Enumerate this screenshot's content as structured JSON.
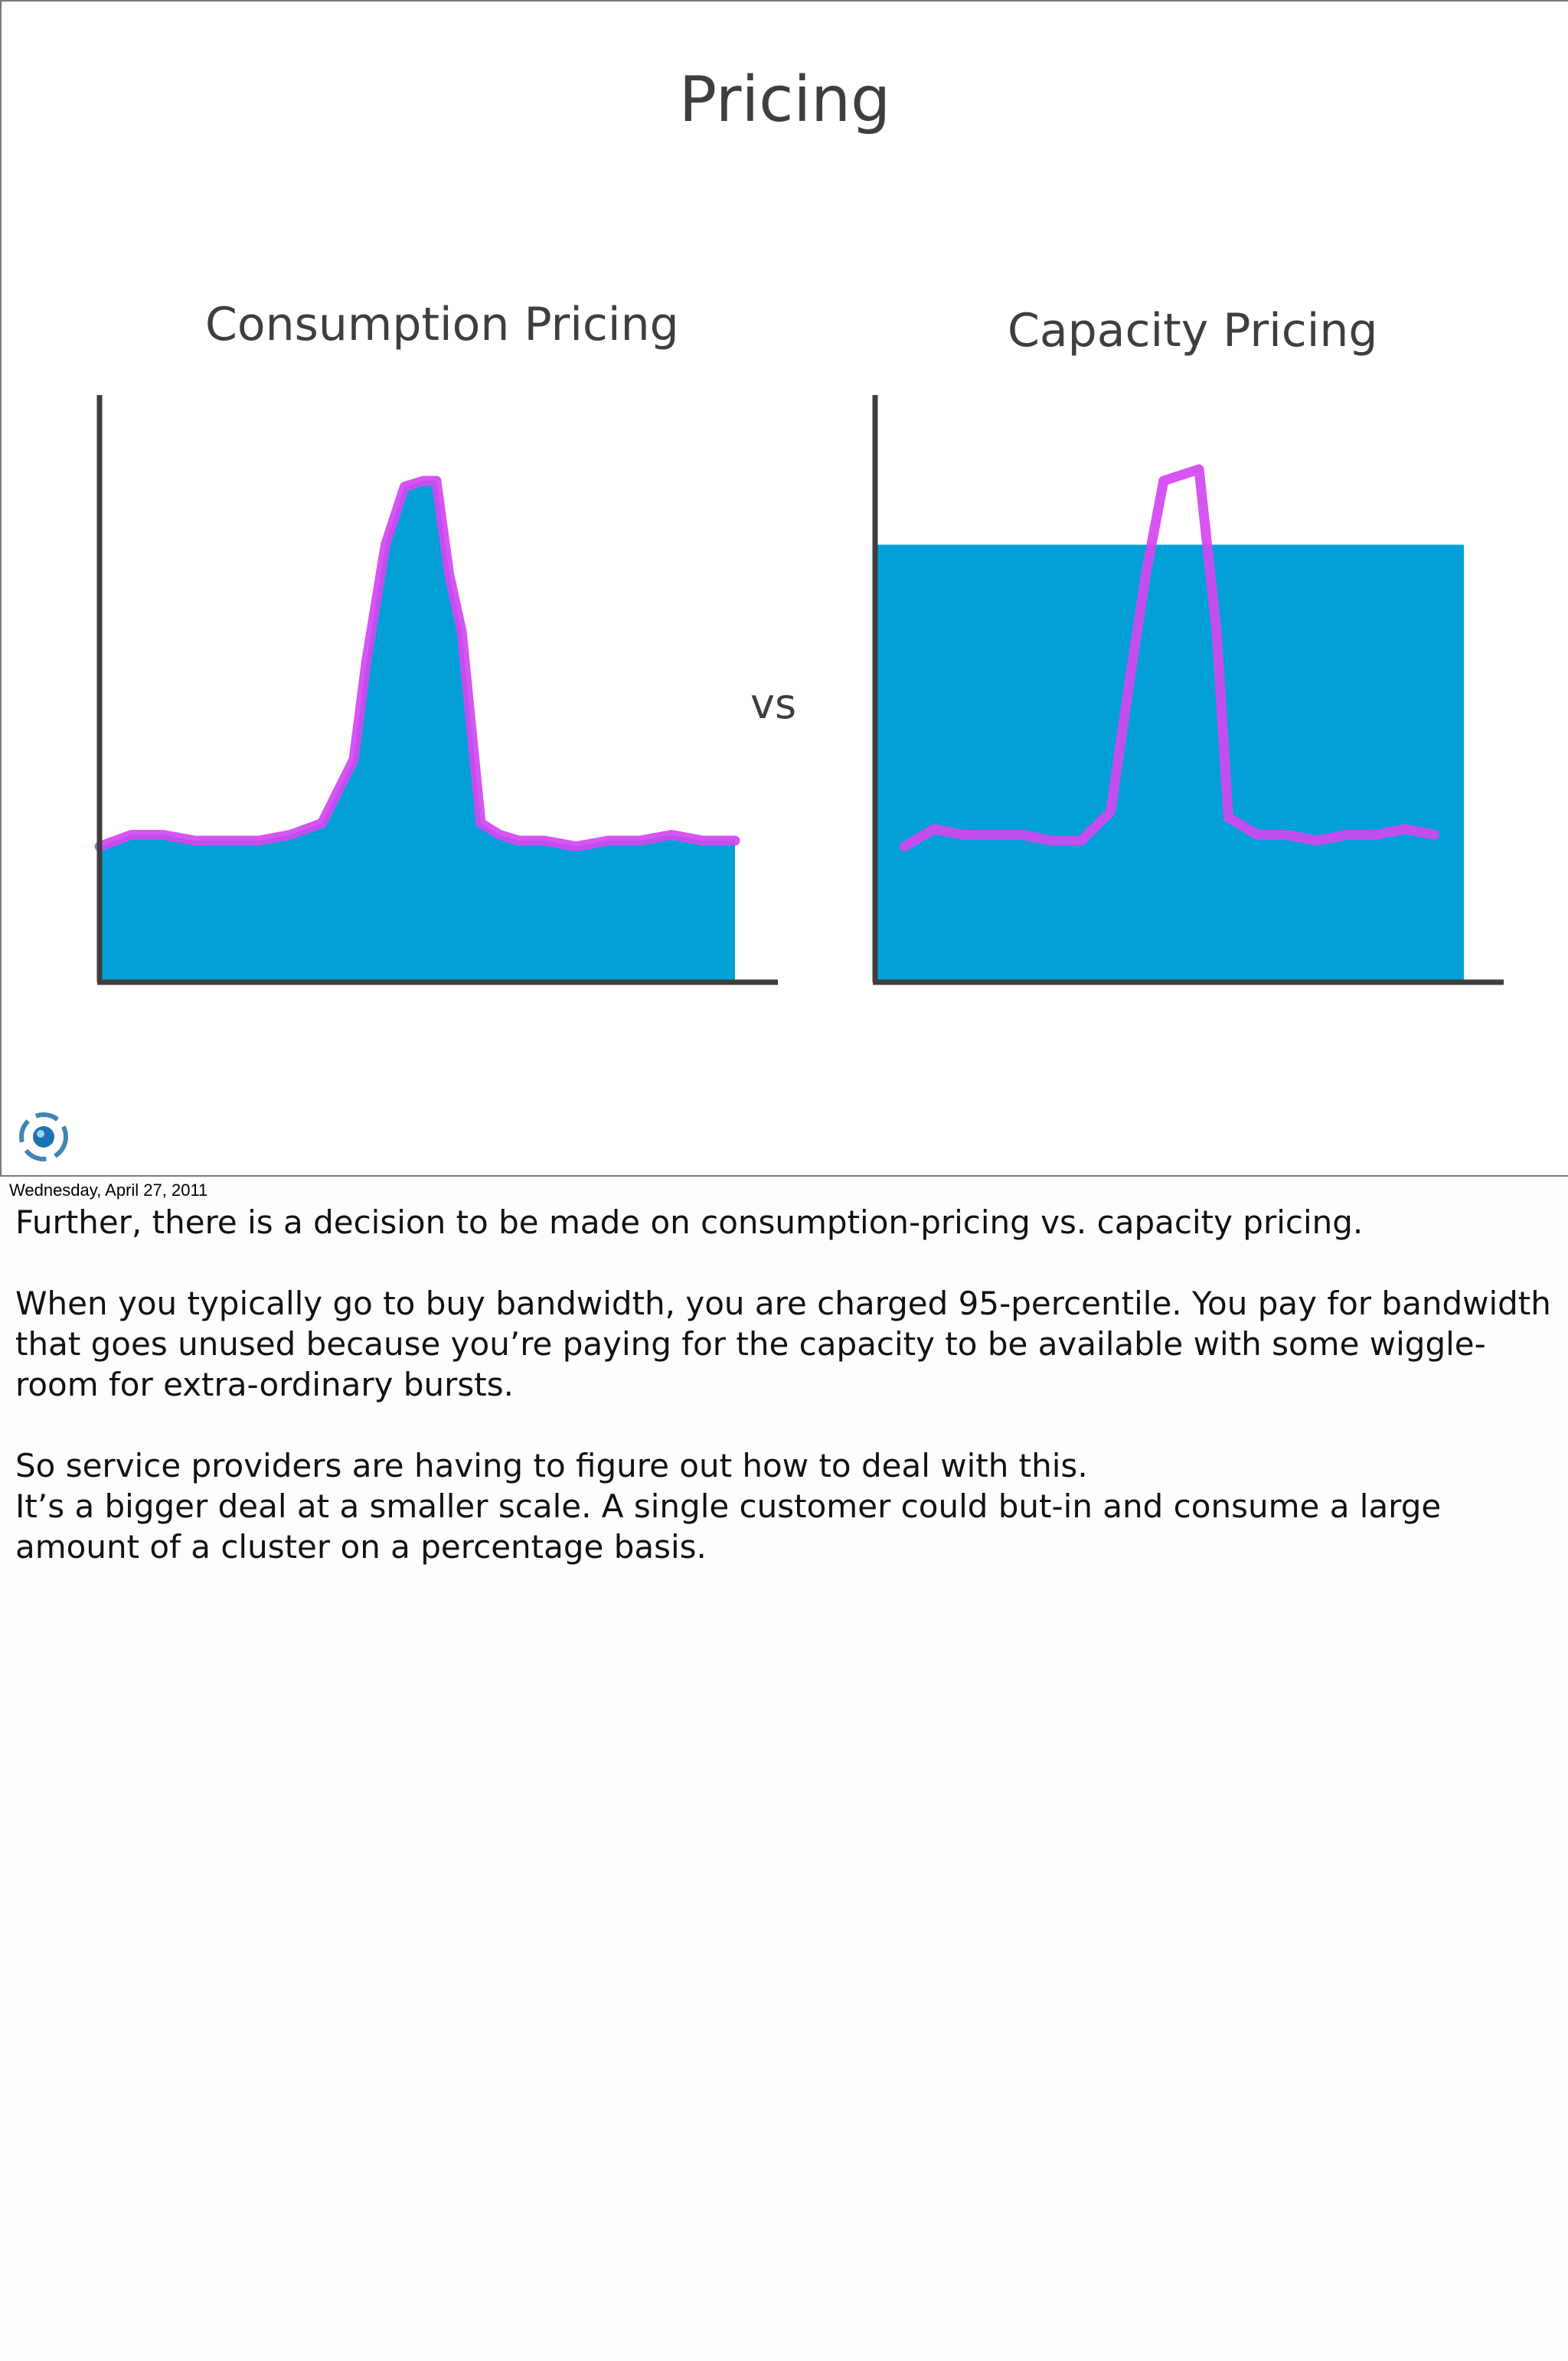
{
  "slide": {
    "title": "Pricing",
    "vs_label": "vs",
    "colors": {
      "fill": "#03a0d7",
      "usage_line": "#d447f2",
      "axis": "#3e3e3e"
    }
  },
  "chart_data": [
    {
      "type": "area",
      "title": "Consumption Pricing",
      "xlabel": "",
      "ylabel": "",
      "grid": false,
      "x": [
        0,
        0.05,
        0.1,
        0.15,
        0.2,
        0.25,
        0.3,
        0.35,
        0.4,
        0.42,
        0.45,
        0.48,
        0.51,
        0.53,
        0.55,
        0.57,
        0.6,
        0.63,
        0.66,
        0.7,
        0.75,
        0.8,
        0.85,
        0.9,
        0.95,
        1.0
      ],
      "series": [
        {
          "values": [
            0.23,
            0.25,
            0.25,
            0.24,
            0.24,
            0.24,
            0.25,
            0.27,
            0.38,
            0.55,
            0.75,
            0.85,
            0.86,
            0.86,
            0.7,
            0.6,
            0.27,
            0.25,
            0.24,
            0.24,
            0.23,
            0.24,
            0.24,
            0.25,
            0.24,
            0.24
          ]
        }
      ]
    },
    {
      "type": "area",
      "title": "Capacity Pricing",
      "xlabel": "",
      "ylabel": "",
      "grid": false,
      "capacity_level": 0.75,
      "x": [
        0.05,
        0.1,
        0.15,
        0.2,
        0.25,
        0.3,
        0.35,
        0.4,
        0.43,
        0.46,
        0.49,
        0.52,
        0.55,
        0.58,
        0.6,
        0.65,
        0.7,
        0.75,
        0.8,
        0.85,
        0.9,
        0.95
      ],
      "series": [
        {
          "values": [
            0.23,
            0.26,
            0.25,
            0.25,
            0.25,
            0.24,
            0.24,
            0.29,
            0.5,
            0.7,
            0.86,
            0.87,
            0.88,
            0.6,
            0.28,
            0.25,
            0.25,
            0.24,
            0.25,
            0.25,
            0.26,
            0.25
          ]
        }
      ]
    }
  ],
  "footer": {
    "date": "Wednesday, April 27, 2011",
    "logo_icon": "company-logo-icon"
  },
  "notes": {
    "p1": "Further, there is a decision to be made on consumption-pricing vs. capacity pricing.",
    "p2": "When you typically go to buy bandwidth, you are charged 95-percentile. You pay for bandwidth that goes unused because you’re paying for the capacity to be available with some wiggle-room for extra-ordinary bursts.",
    "p3": "So service providers are having to figure out how to deal with this.",
    "p4": "It’s a bigger deal at a smaller scale. A single customer could but-in and consume a large amount of a cluster on a percentage basis."
  }
}
